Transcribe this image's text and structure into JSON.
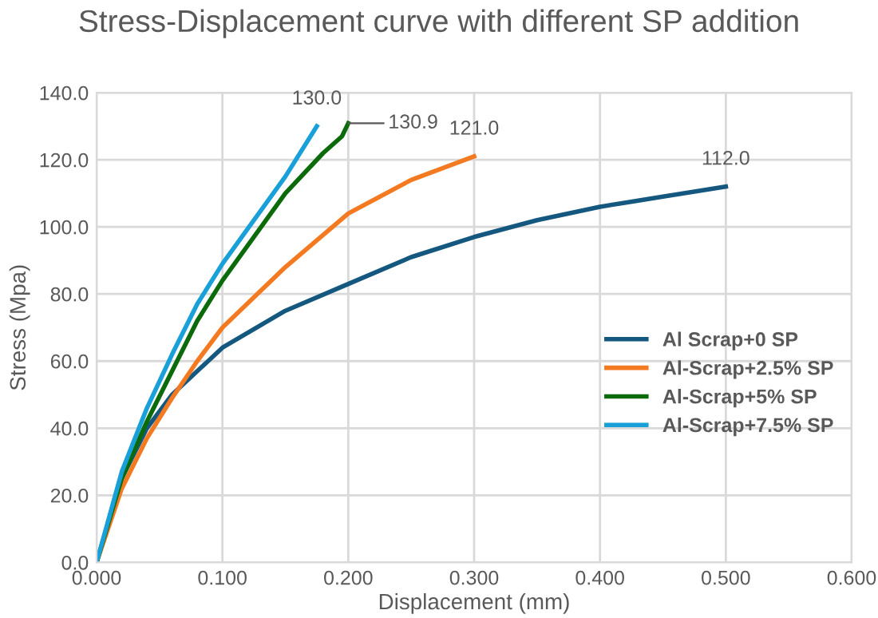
{
  "chart_data": {
    "type": "line",
    "title": "Stress-Displacement curve with different SP addition",
    "xlabel": "Displacement (mm)",
    "ylabel": "Stress (Mpa)",
    "xlim": [
      0,
      0.6
    ],
    "ylim": [
      0,
      140
    ],
    "xticks": [
      {
        "value": 0,
        "label": "0.000"
      },
      {
        "value": 0.1,
        "label": "0.100"
      },
      {
        "value": 0.2,
        "label": "0.200"
      },
      {
        "value": 0.3,
        "label": "0.300"
      },
      {
        "value": 0.4,
        "label": "0.400"
      },
      {
        "value": 0.5,
        "label": "0.500"
      },
      {
        "value": 0.6,
        "label": "0.600"
      }
    ],
    "yticks": [
      {
        "value": 0,
        "label": "0.0"
      },
      {
        "value": 20,
        "label": "20.0"
      },
      {
        "value": 40,
        "label": "40.0"
      },
      {
        "value": 60,
        "label": "60.0"
      },
      {
        "value": 80,
        "label": "80.0"
      },
      {
        "value": 100,
        "label": "100.0"
      },
      {
        "value": 120,
        "label": "120.0"
      },
      {
        "value": 140,
        "label": "140.0"
      }
    ],
    "grid": true,
    "legend": "right",
    "marker": "none",
    "line_style": "solid",
    "series": [
      {
        "name": "Al Scrap+0 SP",
        "color": "#15587f",
        "x": [
          0,
          0.02,
          0.04,
          0.06,
          0.08,
          0.1,
          0.15,
          0.2,
          0.25,
          0.3,
          0.35,
          0.4,
          0.45,
          0.5
        ],
        "values": [
          0,
          25,
          40,
          50,
          57,
          64,
          75,
          83,
          91,
          97,
          102,
          106,
          109,
          112
        ],
        "value_labels": [
          null,
          null,
          null,
          null,
          null,
          null,
          null,
          null,
          null,
          null,
          null,
          null,
          null,
          "112.0"
        ]
      },
      {
        "name": "Al-Scrap+2.5% SP",
        "color": "#f47a22",
        "x": [
          0,
          0.02,
          0.04,
          0.06,
          0.08,
          0.1,
          0.15,
          0.2,
          0.25,
          0.3
        ],
        "values": [
          0,
          22,
          37,
          49,
          60,
          70,
          88,
          104,
          114,
          121
        ],
        "value_labels": [
          null,
          null,
          null,
          null,
          null,
          null,
          null,
          null,
          null,
          "121.0"
        ]
      },
      {
        "name": "Al-Scrap+5% SP",
        "color": "#0b6b0b",
        "x": [
          0,
          0.02,
          0.04,
          0.06,
          0.08,
          0.1,
          0.15,
          0.18,
          0.195,
          0.2
        ],
        "values": [
          0,
          25,
          42,
          57,
          72,
          84,
          110,
          122,
          127,
          130.9
        ],
        "value_labels": [
          null,
          null,
          null,
          null,
          null,
          null,
          null,
          null,
          null,
          "130.9"
        ]
      },
      {
        "name": "Al-Scrap+7.5% SP",
        "color": "#19a0d8",
        "x": [
          0,
          0.02,
          0.04,
          0.06,
          0.08,
          0.1,
          0.15,
          0.175
        ],
        "values": [
          0,
          27,
          46,
          62,
          77,
          89,
          115,
          130
        ],
        "value_labels": [
          null,
          null,
          null,
          null,
          null,
          null,
          null,
          "130.0"
        ]
      }
    ]
  }
}
